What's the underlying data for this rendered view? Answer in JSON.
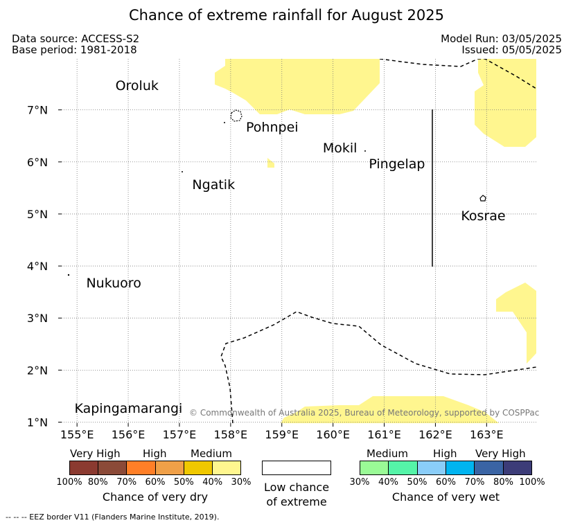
{
  "title": "Chance of extreme rainfall for August 2025",
  "header": {
    "data_source": "Data source: ACCESS-S2",
    "base_period": "Base period: 1981-2018",
    "model_run": "Model Run: 03/05/2025",
    "issued": "Issued: 05/05/2025"
  },
  "map": {
    "lon_range": [
      154.7,
      163.97
    ],
    "lat_range": [
      0.98,
      7.98
    ],
    "lon_ticks": [
      {
        "value": 155,
        "label": "155°E"
      },
      {
        "value": 156,
        "label": "156°E"
      },
      {
        "value": 157,
        "label": "157°E"
      },
      {
        "value": 158,
        "label": "158°E"
      },
      {
        "value": 159,
        "label": "159°E"
      },
      {
        "value": 160,
        "label": "160°E"
      },
      {
        "value": 161,
        "label": "161°E"
      },
      {
        "value": 162,
        "label": "162°E"
      },
      {
        "value": 163,
        "label": "163°E"
      }
    ],
    "lat_ticks": [
      {
        "value": 1,
        "label": "1°N"
      },
      {
        "value": 2,
        "label": "2°N"
      },
      {
        "value": 3,
        "label": "3°N"
      },
      {
        "value": 4,
        "label": "4°N"
      },
      {
        "value": 5,
        "label": "5°N"
      },
      {
        "value": 6,
        "label": "6°N"
      },
      {
        "value": 7,
        "label": "7°N"
      }
    ],
    "places": [
      {
        "name": "Oroluk",
        "lon": 155.75,
        "lat": 7.45
      },
      {
        "name": "Pohnpei",
        "lon": 158.3,
        "lat": 6.65
      },
      {
        "name": "Mokil",
        "lon": 159.8,
        "lat": 6.25
      },
      {
        "name": "Pingelap",
        "lon": 160.7,
        "lat": 5.95
      },
      {
        "name": "Ngatik",
        "lon": 157.25,
        "lat": 5.55
      },
      {
        "name": "Kosrae",
        "lon": 162.5,
        "lat": 4.95
      },
      {
        "name": "Nukuoro",
        "lon": 155.18,
        "lat": 3.65
      },
      {
        "name": "Kapingamarangi",
        "lon": 154.95,
        "lat": 1.25
      }
    ],
    "dry_30_40_color": "#fff68f",
    "copyright": "© Commonwealth of Australia 2025, Bureau of Meteorology, supported by COSPPac"
  },
  "legend": {
    "dry": {
      "categories": [
        "Very High",
        "High",
        "Medium"
      ],
      "colors": [
        "#8b3a30",
        "#8b4a38",
        "#ff7f27",
        "#f0a048",
        "#f0c800",
        "#fff68f"
      ],
      "pcts": [
        "100%",
        "80%",
        "70%",
        "60%",
        "50%",
        "40%",
        "30%"
      ],
      "caption": "Chance of very dry"
    },
    "neutral": {
      "line1": "Low chance",
      "line2": "of extreme"
    },
    "wet": {
      "categories": [
        "Medium",
        "High",
        "Very High"
      ],
      "colors": [
        "#9afa96",
        "#55f4a8",
        "#8acdf8",
        "#00b4f0",
        "#3a64a4",
        "#3c3c78"
      ],
      "pcts": [
        "30%",
        "40%",
        "50%",
        "60%",
        "70%",
        "80%",
        "100%"
      ],
      "caption": "Chance of very wet"
    }
  },
  "footnote": "--  --  -- EEZ border V11 (Flanders Marine Institute, 2019)."
}
